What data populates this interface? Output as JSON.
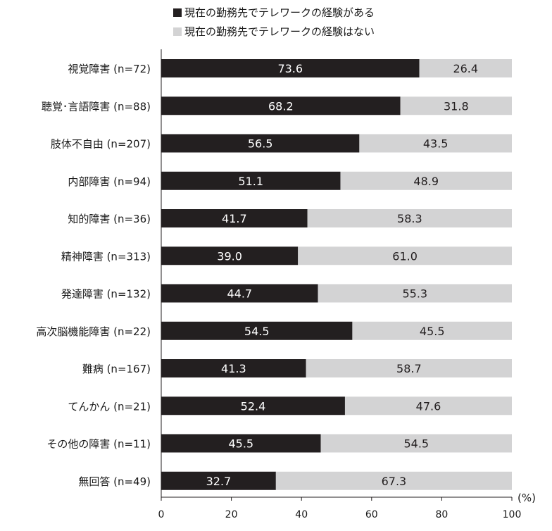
{
  "chart_data": {
    "type": "bar",
    "orientation": "horizontal",
    "stacked": true,
    "title": "",
    "xlabel": "",
    "ylabel": "",
    "unit_label": "(%)",
    "xlim": [
      0,
      100
    ],
    "xticks": [
      0,
      20,
      40,
      60,
      80,
      100
    ],
    "categories": [
      "視覚障害 (n=72)",
      "聴覚･言語障害 (n=88)",
      "肢体不自由 (n=207)",
      "内部障害 (n=94)",
      "知的障害 (n=36)",
      "精神障害 (n=313)",
      "発達障害 (n=132)",
      "高次脳機能障害 (n=22)",
      "難病 (n=167)",
      "てんかん (n=21)",
      "その他の障害 (n=11)",
      "無回答 (n=49)"
    ],
    "series": [
      {
        "name": "現在の勤務先でテレワークの経験がある",
        "color": "#231f20",
        "label_color": "#ffffff",
        "values": [
          73.6,
          68.2,
          56.5,
          51.1,
          41.7,
          39.0,
          44.7,
          54.5,
          41.3,
          52.4,
          45.5,
          32.7
        ],
        "labels": [
          "73.6",
          "68.2",
          "56.5",
          "51.1",
          "41.7",
          "39.0",
          "44.7",
          "54.5",
          "41.3",
          "52.4",
          "45.5",
          "32.7"
        ]
      },
      {
        "name": "現在の勤務先でテレワークの経験はない",
        "color": "#d3d3d4",
        "label_color": "#231f20",
        "values": [
          26.4,
          31.8,
          43.5,
          48.9,
          58.3,
          61.0,
          55.3,
          45.5,
          58.7,
          47.6,
          54.5,
          67.3
        ],
        "labels": [
          "26.4",
          "31.8",
          "43.5",
          "48.9",
          "58.3",
          "61.0",
          "55.3",
          "45.5",
          "58.7",
          "47.6",
          "54.5",
          "67.3"
        ]
      }
    ]
  }
}
